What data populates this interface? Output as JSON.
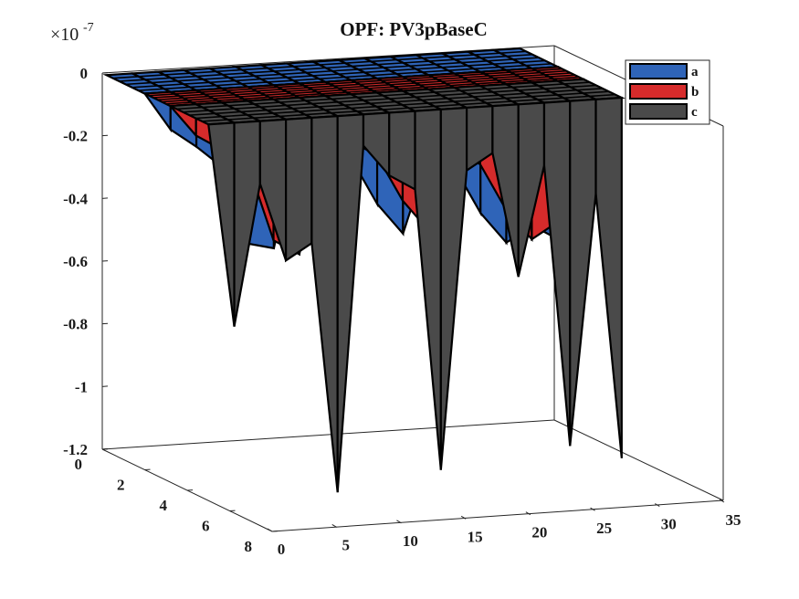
{
  "chart_data": {
    "type": "surface3d",
    "title": "OPF: PV3pBaseC",
    "exponent_label": "×10",
    "exponent_power": "-7",
    "x_ticks": [
      "0",
      "5",
      "10",
      "15",
      "20",
      "25",
      "30",
      "35"
    ],
    "y_ticks": [
      "0",
      "2",
      "4",
      "6",
      "8"
    ],
    "z_ticks": [
      "0",
      "-0.2",
      "-0.4",
      "-0.6",
      "-0.8",
      "-1",
      "-1.2"
    ],
    "xlim": [
      0,
      35
    ],
    "ylim": [
      0,
      8
    ],
    "zlim": [
      -1.2,
      0
    ],
    "grid": false,
    "legend_position": "top-right",
    "series": [
      {
        "name": "a",
        "color": "#2f64b8",
        "x": [
          0,
          2,
          4,
          6,
          8,
          10,
          12,
          14,
          16,
          18,
          20,
          22,
          24,
          26,
          28,
          30,
          32
        ],
        "min_values": [
          0,
          -0.12,
          -0.18,
          -0.25,
          -0.5,
          -0.52,
          -0.15,
          -0.2,
          -0.25,
          -0.4,
          -0.5,
          -0.25,
          -0.3,
          -0.45,
          -0.55,
          -0.5,
          -0.55
        ]
      },
      {
        "name": "b",
        "color": "#d62b2b",
        "x": [
          0,
          2,
          4,
          6,
          8,
          10,
          12,
          14,
          16,
          18,
          20,
          22,
          24,
          26,
          28,
          30,
          32
        ],
        "min_values": [
          0,
          -0.1,
          -0.15,
          -0.2,
          -0.45,
          -0.5,
          -0.1,
          -0.15,
          -0.2,
          -0.35,
          -0.45,
          -0.2,
          -0.25,
          -0.4,
          -0.5,
          -0.45,
          -0.5
        ]
      },
      {
        "name": "c",
        "color": "#4a4a4a",
        "x": [
          0,
          2,
          4,
          6,
          8,
          10,
          12,
          14,
          16,
          18,
          20,
          22,
          24,
          26,
          28,
          30,
          32
        ],
        "min_values": [
          0,
          -0.65,
          -0.2,
          -0.45,
          -0.4,
          -1.2,
          -0.1,
          -0.2,
          -0.25,
          -1.15,
          -0.2,
          -0.15,
          -0.55,
          -0.2,
          -1.1,
          -0.3,
          -1.15
        ]
      }
    ]
  }
}
